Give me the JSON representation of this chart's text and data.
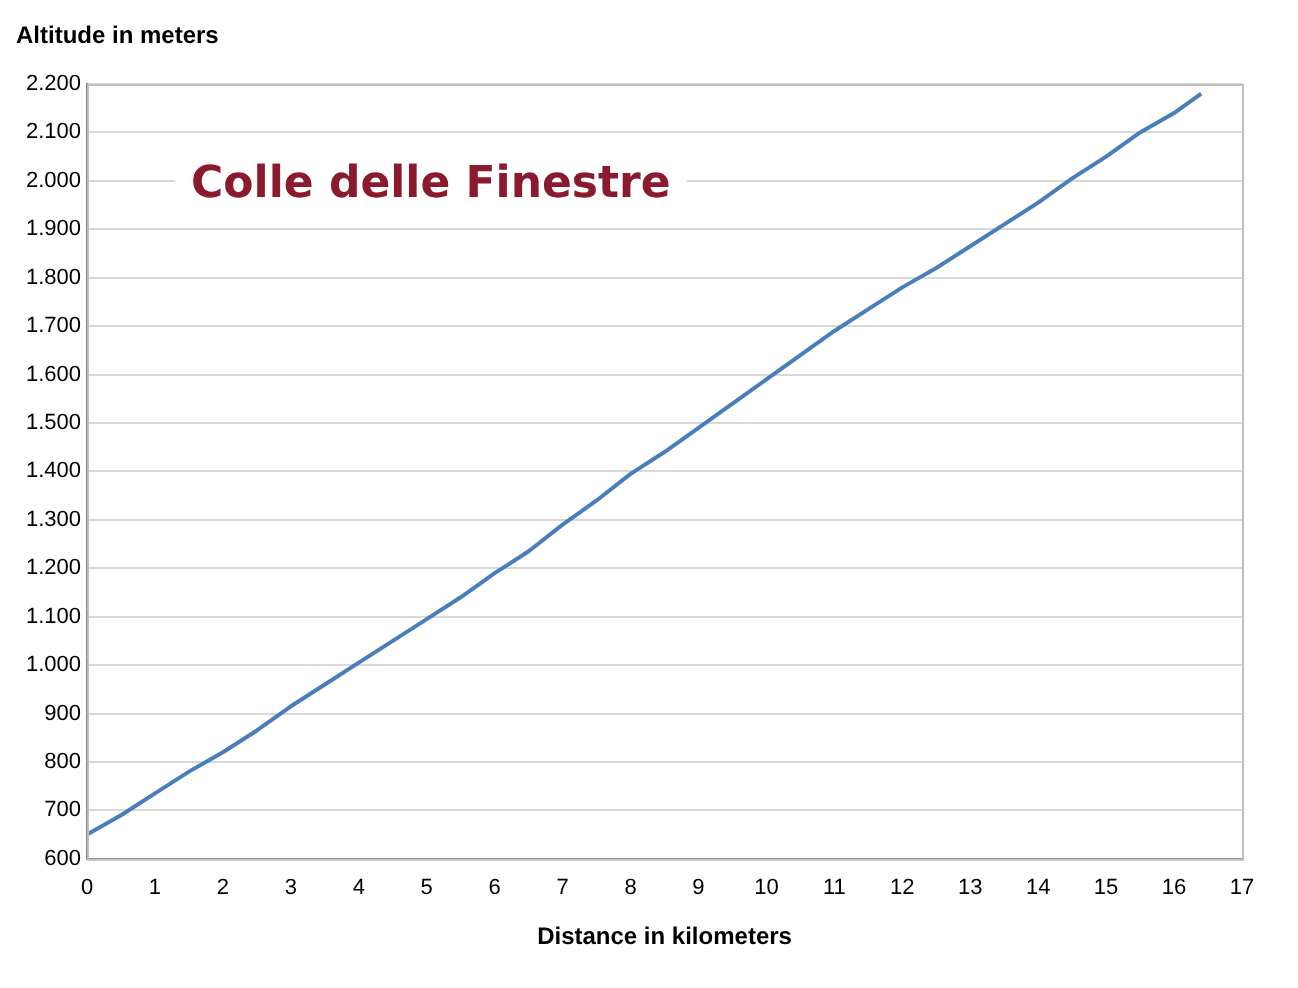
{
  "chart_data": {
    "type": "line",
    "title": "Colle delle Finestre",
    "xlabel": "Distance in kilometers",
    "ylabel": "Altitude in meters",
    "x": [
      0,
      0.5,
      1,
      1.5,
      2,
      2.5,
      3,
      3.5,
      4,
      4.5,
      5,
      5.5,
      6,
      6.5,
      7,
      7.5,
      8,
      8.5,
      9,
      9.5,
      10,
      10.5,
      11,
      11.5,
      12,
      12.5,
      13,
      13.5,
      14,
      14.5,
      15,
      15.5,
      16,
      16.4
    ],
    "series": [
      {
        "color": "#4a7ebb",
        "values": [
          650,
          690,
          735,
          780,
          820,
          865,
          915,
          960,
          1005,
          1050,
          1095,
          1140,
          1190,
          1235,
          1290,
          1340,
          1395,
          1440,
          1490,
          1540,
          1590,
          1640,
          1690,
          1735,
          1780,
          1820,
          1865,
          1910,
          1955,
          2005,
          2050,
          2100,
          2140,
          2180
        ]
      }
    ],
    "xlim": [
      0,
      17
    ],
    "xticks": [
      0,
      1,
      2,
      3,
      4,
      5,
      6,
      7,
      8,
      9,
      10,
      11,
      12,
      13,
      14,
      15,
      16,
      17
    ],
    "ylim": [
      600,
      2200
    ],
    "yticks": [
      600,
      700,
      800,
      900,
      {
        "value": 1000,
        "label": "1.000"
      },
      {
        "value": 1100,
        "label": "1.100"
      },
      {
        "value": 1200,
        "label": "1.200"
      },
      {
        "value": 1300,
        "label": "1.300"
      },
      {
        "value": 1400,
        "label": "1.400"
      },
      {
        "value": 1500,
        "label": "1.500"
      },
      {
        "value": 1600,
        "label": "1.600"
      },
      {
        "value": 1700,
        "label": "1.700"
      },
      {
        "value": 1800,
        "label": "1.800"
      },
      {
        "value": 1900,
        "label": "1.900"
      },
      {
        "value": 2000,
        "label": "2.000"
      },
      {
        "value": 2100,
        "label": "2.100"
      },
      {
        "value": 2200,
        "label": "2.200"
      }
    ],
    "grid": "y",
    "legend": false,
    "marker": "none",
    "line_style": "solid"
  }
}
